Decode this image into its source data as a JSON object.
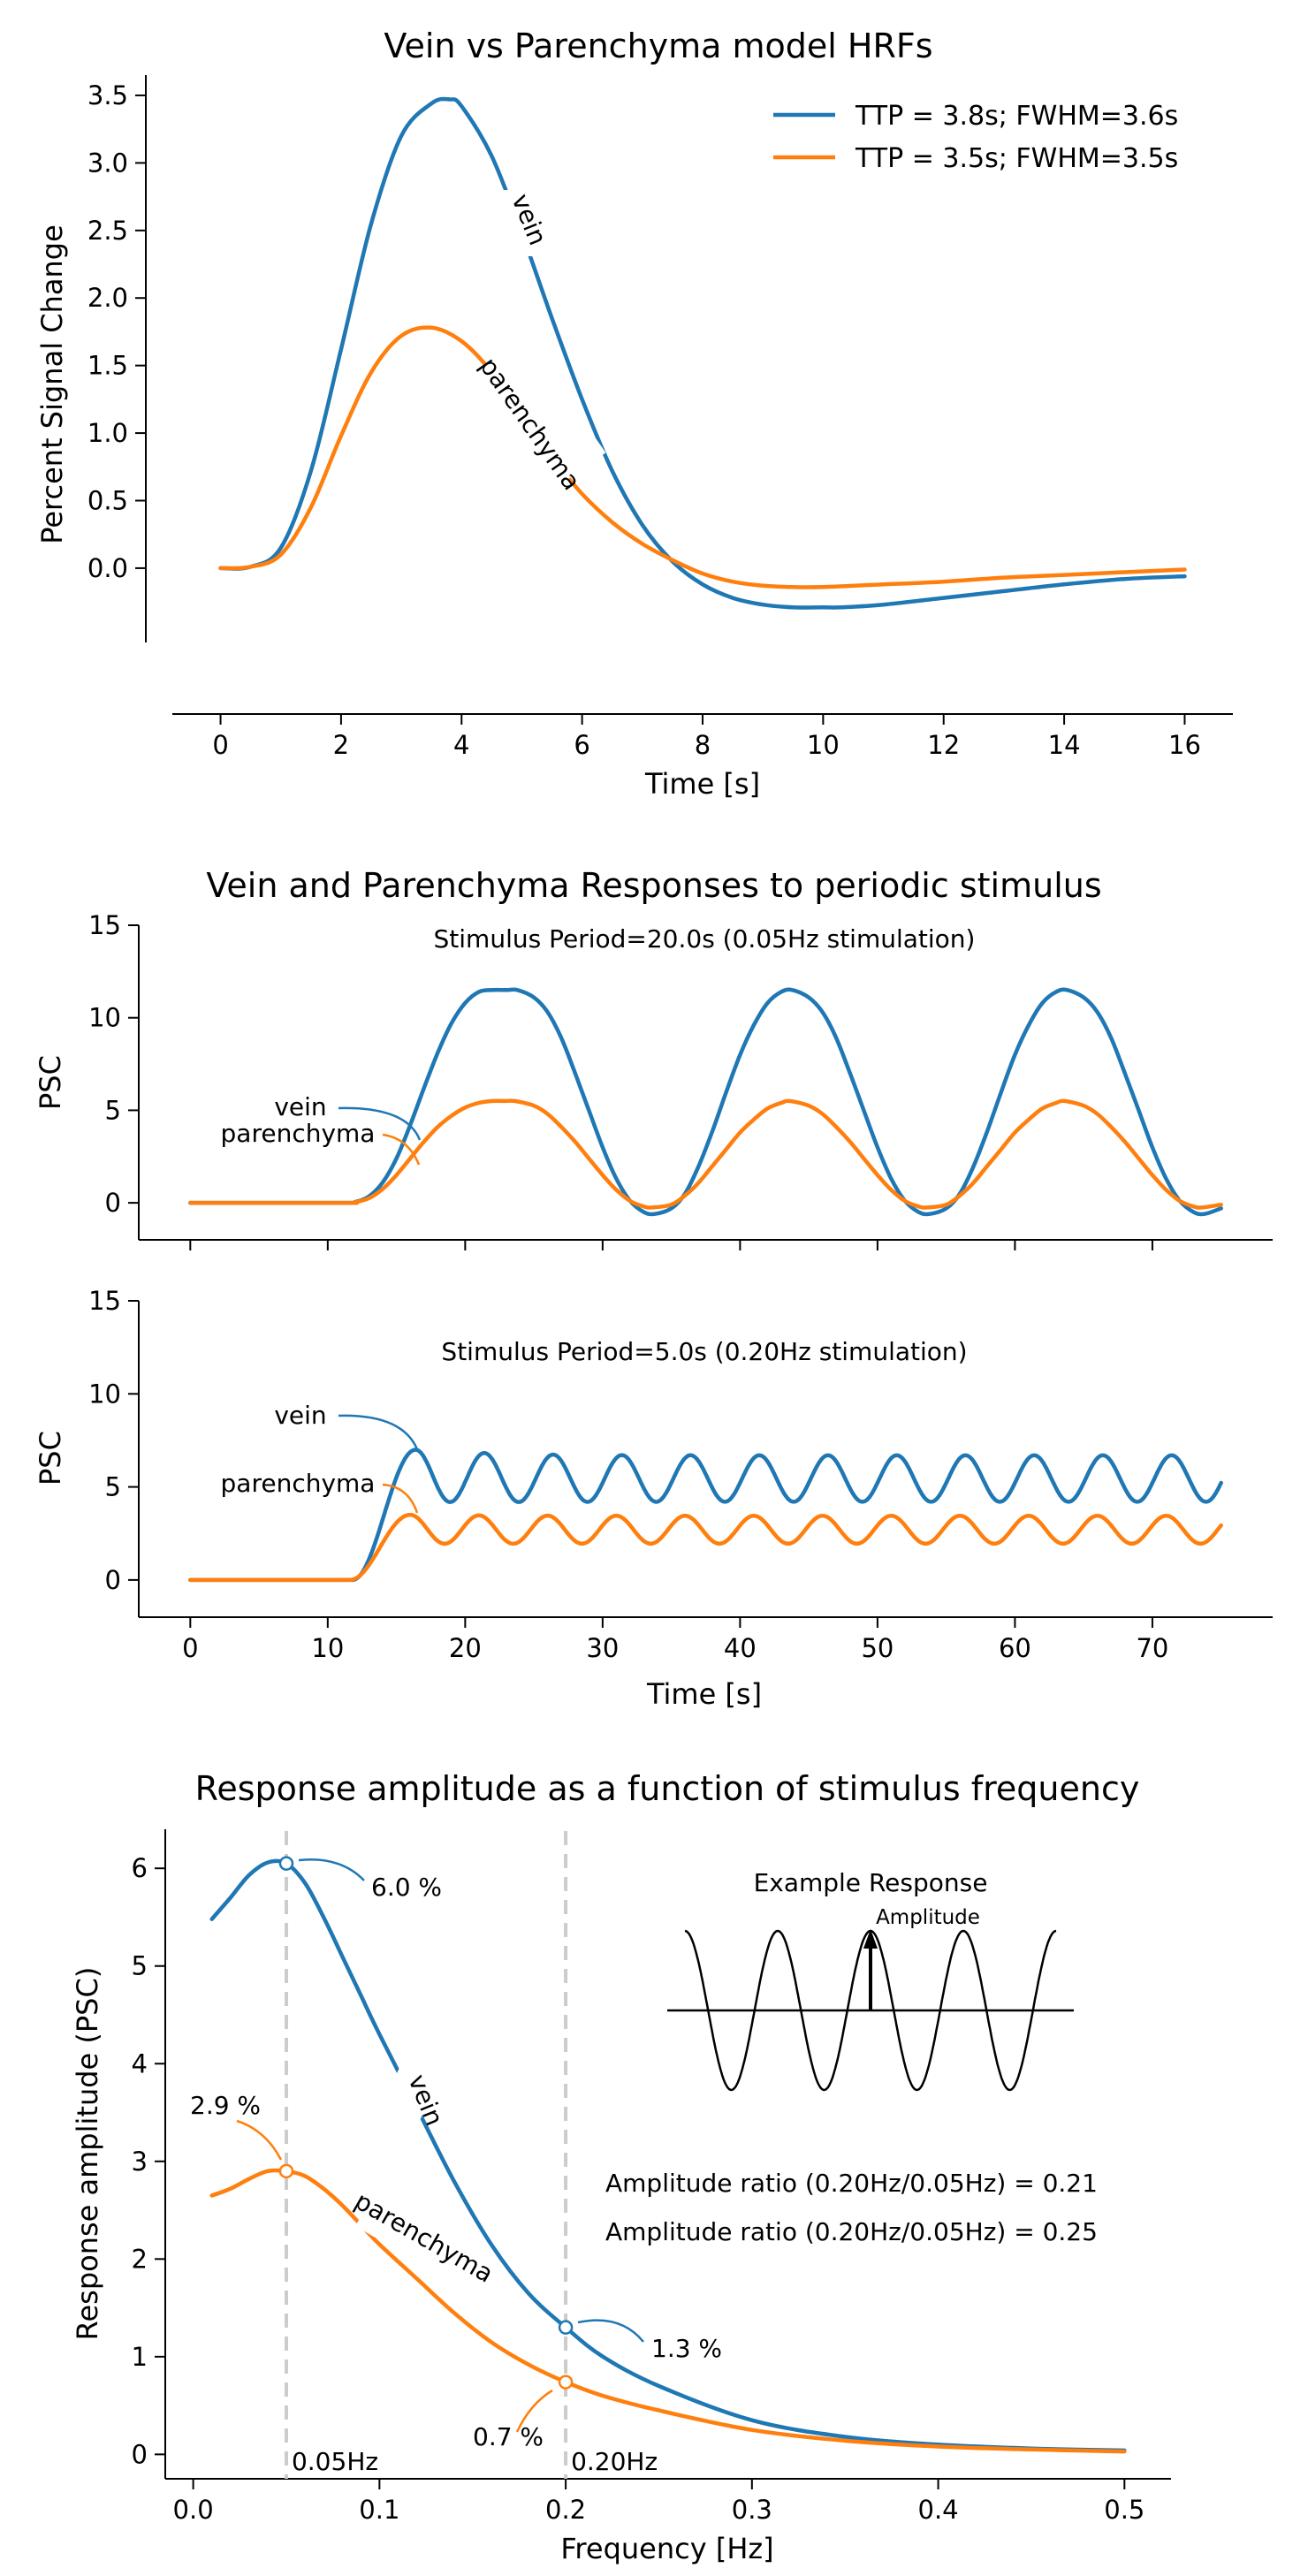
{
  "colors": {
    "vein": "#1f77b4",
    "parenchyma": "#ff7f0e",
    "ref_line": "#cccccc",
    "ref_label": "#808080"
  },
  "chart_data": [
    {
      "type": "line",
      "title": "Vein vs Parenchyma model HRFs",
      "xlabel": "Time [s]",
      "ylabel": "Percent Signal Change",
      "xlim": [
        -0.8,
        16.8
      ],
      "ylim": [
        -0.55,
        3.65
      ],
      "xticks": [
        "0",
        "2",
        "4",
        "6",
        "8",
        "10",
        "12",
        "14",
        "16"
      ],
      "yticks": [
        "0.0",
        "0.5",
        "1.0",
        "1.5",
        "2.0",
        "2.5",
        "3.0",
        "3.5"
      ],
      "legend_position": "top-right",
      "grid": false,
      "series": [
        {
          "name": "TTP = 3.8s; FWHM=3.6s",
          "line_label": "vein",
          "x": [
            0,
            0.5,
            1,
            1.5,
            2,
            2.5,
            3,
            3.5,
            3.8,
            4,
            4.5,
            5,
            5.5,
            6,
            6.5,
            7,
            7.5,
            8,
            8.5,
            9,
            9.5,
            10,
            10.3,
            11,
            12,
            13,
            14,
            15,
            16
          ],
          "y": [
            0,
            0.01,
            0.15,
            0.72,
            1.62,
            2.55,
            3.2,
            3.44,
            3.47,
            3.42,
            3.05,
            2.48,
            1.85,
            1.25,
            0.72,
            0.32,
            0.05,
            -0.12,
            -0.22,
            -0.27,
            -0.29,
            -0.29,
            -0.29,
            -0.27,
            -0.22,
            -0.17,
            -0.12,
            -0.08,
            -0.06
          ]
        },
        {
          "name": "TTP = 3.5s; FWHM=3.5s",
          "line_label": "parenchyma",
          "x": [
            0,
            0.5,
            1,
            1.5,
            2,
            2.5,
            3,
            3.5,
            4,
            4.5,
            5,
            5.5,
            6,
            6.5,
            7,
            7.5,
            8,
            8.5,
            9,
            9.5,
            10,
            11,
            12,
            13,
            14,
            15,
            16
          ],
          "y": [
            0,
            0.01,
            0.1,
            0.45,
            0.98,
            1.45,
            1.72,
            1.78,
            1.68,
            1.45,
            1.12,
            0.82,
            0.55,
            0.34,
            0.18,
            0.06,
            -0.04,
            -0.1,
            -0.13,
            -0.14,
            -0.14,
            -0.12,
            -0.1,
            -0.07,
            -0.05,
            -0.03,
            -0.01
          ]
        }
      ]
    },
    {
      "type": "line",
      "title": "Vein and Parenchyma Responses to periodic stimulus",
      "annotation": "Stimulus Period=20.0s   (0.05Hz stimulation)",
      "xlabel": "",
      "ylabel": "PSC",
      "xlim": [
        -3.75,
        78.75
      ],
      "ylim": [
        -2,
        15
      ],
      "yticks": [
        "0",
        "5",
        "10",
        "15"
      ],
      "series": [
        {
          "name": "vein",
          "line_label": "vein",
          "x": [
            0,
            11,
            12,
            13,
            14,
            15,
            16,
            17,
            18,
            19,
            20,
            21,
            22,
            23,
            23.8,
            25,
            26,
            27,
            28,
            29,
            30,
            31,
            32,
            33,
            33.8,
            35,
            36,
            37,
            38,
            39,
            40,
            41,
            42,
            43,
            43.8,
            45,
            46,
            47,
            48,
            49,
            50,
            51,
            52,
            53,
            53.8,
            55,
            56,
            57,
            58,
            59,
            60,
            61,
            62,
            63,
            63.8,
            65,
            66,
            67,
            68,
            69,
            70,
            71,
            72,
            73,
            73.8,
            75
          ],
          "y": [
            0,
            0,
            0.05,
            0.35,
            1.1,
            2.4,
            4.2,
            6.2,
            8.1,
            9.7,
            10.8,
            11.4,
            11.5,
            11.5,
            11.5,
            11.1,
            10.3,
            8.9,
            7.0,
            5.0,
            3.0,
            1.3,
            0.1,
            -0.5,
            -0.6,
            -0.3,
            0.5,
            2.0,
            3.9,
            6.0,
            8.0,
            9.6,
            10.8,
            11.4,
            11.5,
            11.1,
            10.3,
            8.9,
            7.0,
            5.0,
            3.0,
            1.3,
            0.1,
            -0.5,
            -0.6,
            -0.3,
            0.5,
            2.0,
            3.9,
            6.0,
            8.0,
            9.6,
            10.8,
            11.4,
            11.5,
            11.1,
            10.3,
            8.9,
            7.0,
            5.0,
            3.0,
            1.3,
            0.1,
            -0.5,
            -0.6,
            -0.3
          ]
        },
        {
          "name": "parenchyma",
          "line_label": "parenchyma",
          "x": [
            0,
            11,
            12,
            13,
            14,
            15,
            16,
            17,
            18,
            19,
            20,
            21,
            22,
            23,
            23.6,
            25,
            26,
            27,
            28,
            29,
            30,
            31,
            32,
            33,
            33.6,
            35,
            36,
            37,
            38,
            39,
            40,
            41,
            42,
            43,
            43.6,
            45,
            46,
            47,
            48,
            49,
            50,
            51,
            52,
            53,
            53.6,
            55,
            56,
            57,
            58,
            59,
            60,
            61,
            62,
            63,
            63.6,
            65,
            66,
            67,
            68,
            69,
            70,
            71,
            72,
            73,
            73.6,
            75
          ],
          "y": [
            0,
            0,
            0.04,
            0.25,
            0.75,
            1.5,
            2.4,
            3.3,
            4.1,
            4.7,
            5.15,
            5.4,
            5.5,
            5.5,
            5.5,
            5.25,
            4.8,
            4.1,
            3.3,
            2.4,
            1.5,
            0.7,
            0.1,
            -0.2,
            -0.25,
            -0.1,
            0.4,
            1.1,
            2.0,
            2.9,
            3.8,
            4.5,
            5.1,
            5.4,
            5.5,
            5.25,
            4.8,
            4.1,
            3.3,
            2.4,
            1.5,
            0.7,
            0.1,
            -0.2,
            -0.25,
            -0.1,
            0.4,
            1.1,
            2.0,
            2.9,
            3.8,
            4.5,
            5.1,
            5.4,
            5.5,
            5.25,
            4.8,
            4.1,
            3.3,
            2.4,
            1.5,
            0.7,
            0.1,
            -0.2,
            -0.25,
            -0.1
          ]
        }
      ]
    },
    {
      "type": "line",
      "title": "",
      "annotation": "Stimulus Period=5.0s   (0.20Hz stimulation)",
      "xlabel": "Time [s]",
      "ylabel": "PSC",
      "xlim": [
        -3.75,
        78.75
      ],
      "ylim": [
        -2,
        15
      ],
      "xticks": [
        "0",
        "10",
        "20",
        "30",
        "40",
        "50",
        "60",
        "70"
      ],
      "yticks": [
        "0",
        "5",
        "10",
        "15"
      ],
      "series": [
        {
          "name": "vein",
          "line_label": "vein",
          "baseline_end": 11.8,
          "peak_time": 16.4,
          "peak_value": 7.0,
          "oscillation_mean": 5.45,
          "oscillation_amplitude": 1.25,
          "period": 5.0,
          "x_end": 75
        },
        {
          "name": "parenchyma",
          "line_label": "parenchyma",
          "baseline_end": 11.6,
          "peak_time": 16.0,
          "peak_value": 3.5,
          "oscillation_mean": 2.7,
          "oscillation_amplitude": 0.75,
          "period": 5.0,
          "x_end": 75
        }
      ]
    },
    {
      "type": "line",
      "title": "Response amplitude as a function of stimulus frequency",
      "xlabel": "Frequency [Hz]",
      "ylabel": "Response amplitude (PSC)",
      "xlim": [
        -0.015,
        0.525
      ],
      "ylim": [
        -0.25,
        6.4
      ],
      "xticks": [
        "0.0",
        "0.1",
        "0.2",
        "0.3",
        "0.4",
        "0.5"
      ],
      "yticks": [
        "0",
        "1",
        "2",
        "3",
        "4",
        "5",
        "6"
      ],
      "reference_lines": [
        {
          "x": 0.05,
          "label": "0.05Hz"
        },
        {
          "x": 0.2,
          "label": "0.20Hz"
        }
      ],
      "series": [
        {
          "name": "vein",
          "line_label": "vein",
          "x": [
            0.01,
            0.02,
            0.03,
            0.04,
            0.05,
            0.06,
            0.07,
            0.08,
            0.09,
            0.1,
            0.12,
            0.14,
            0.16,
            0.18,
            0.2,
            0.22,
            0.25,
            0.3,
            0.35,
            0.4,
            0.45,
            0.5
          ],
          "y": [
            5.48,
            5.7,
            5.93,
            6.06,
            6.05,
            5.85,
            5.5,
            5.1,
            4.7,
            4.3,
            3.55,
            2.8,
            2.15,
            1.65,
            1.3,
            1.0,
            0.7,
            0.35,
            0.18,
            0.1,
            0.06,
            0.04
          ],
          "marked_points": [
            {
              "x": 0.05,
              "y": 6.05,
              "label": "6.0 %"
            },
            {
              "x": 0.2,
              "y": 1.3,
              "label": "1.3 %"
            }
          ]
        },
        {
          "name": "parenchyma",
          "line_label": "parenchyma",
          "x": [
            0.01,
            0.02,
            0.03,
            0.04,
            0.05,
            0.06,
            0.07,
            0.08,
            0.09,
            0.1,
            0.12,
            0.14,
            0.16,
            0.18,
            0.2,
            0.22,
            0.25,
            0.3,
            0.35,
            0.4,
            0.45,
            0.5
          ],
          "y": [
            2.65,
            2.72,
            2.82,
            2.9,
            2.9,
            2.85,
            2.72,
            2.55,
            2.35,
            2.15,
            1.8,
            1.45,
            1.15,
            0.92,
            0.74,
            0.6,
            0.45,
            0.25,
            0.14,
            0.08,
            0.05,
            0.03
          ],
          "marked_points": [
            {
              "x": 0.05,
              "y": 2.9,
              "label": "2.9 %"
            },
            {
              "x": 0.2,
              "y": 0.74,
              "label": "0.7 %"
            }
          ]
        }
      ],
      "ratio_labels": [
        "Amplitude ratio (0.20Hz/0.05Hz) = 0.21",
        "Amplitude ratio (0.20Hz/0.05Hz) = 0.25"
      ],
      "inset": {
        "title": "Example Response",
        "arrow_label": "Amplitude"
      }
    }
  ]
}
